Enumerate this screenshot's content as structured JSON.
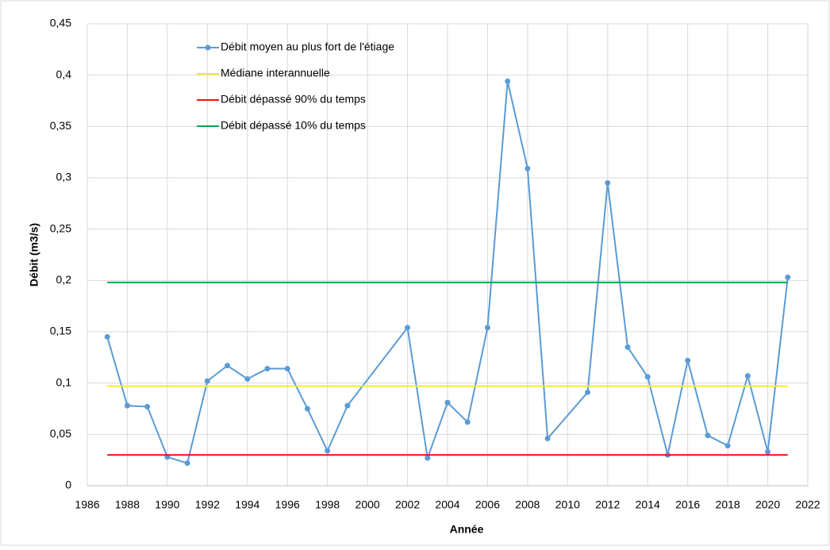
{
  "chart_data": {
    "type": "line",
    "x_label": "Année",
    "y_label": "Débit (m3/s)",
    "xlim": [
      1986,
      2022
    ],
    "xticks": [
      1986,
      1988,
      1990,
      1992,
      1994,
      1996,
      1998,
      2000,
      2002,
      2004,
      2006,
      2008,
      2010,
      2012,
      2014,
      2016,
      2018,
      2020,
      2022
    ],
    "ylim": [
      0,
      0.45
    ],
    "yticks": [
      0,
      {
        "value": 0.05,
        "label": "0,05"
      },
      {
        "value": 0.1,
        "label": "0,1"
      },
      {
        "value": 0.15,
        "label": "0,15"
      },
      {
        "value": 0.2,
        "label": "0,2"
      },
      {
        "value": 0.25,
        "label": "0,25"
      },
      {
        "value": 0.3,
        "label": "0,3"
      },
      {
        "value": 0.35,
        "label": "0,35"
      },
      {
        "value": 0.4,
        "label": "0,4"
      },
      {
        "value": 0.45,
        "label": "0,45"
      }
    ],
    "grid": true,
    "legend": "top-left",
    "series": [
      {
        "name": "Débit moyen au plus fort de l'étiage",
        "color": "#5b9bd5",
        "marker": true,
        "x": [
          1987,
          1988,
          1989,
          1990,
          1991,
          1992,
          1993,
          1994,
          1995,
          1996,
          1997,
          1998,
          1999,
          2002,
          2003,
          2004,
          2005,
          2006,
          2007,
          2008,
          2009,
          2011,
          2012,
          2013,
          2014,
          2015,
          2016,
          2017,
          2018,
          2019,
          2020,
          2021
        ],
        "values": [
          0.145,
          0.078,
          0.077,
          0.028,
          0.022,
          0.102,
          0.117,
          0.104,
          0.114,
          0.114,
          0.075,
          0.034,
          0.078,
          0.154,
          0.027,
          0.081,
          0.062,
          0.154,
          0.394,
          0.309,
          0.046,
          0.091,
          0.295,
          0.135,
          0.106,
          0.03,
          0.122,
          0.049,
          0.039,
          0.107,
          0.033,
          0.203
        ]
      },
      {
        "name": "Médiane interannuelle",
        "color": "#f0f020",
        "marker": false,
        "x": [
          1987,
          2021
        ],
        "values": [
          0.097,
          0.097
        ]
      },
      {
        "name": "Débit dépassé 90% du temps",
        "color": "#ee1111",
        "marker": false,
        "x": [
          1987,
          2021
        ],
        "values": [
          0.03,
          0.03
        ]
      },
      {
        "name": "Débit dépassé 10% du temps",
        "color": "#00a84f",
        "marker": false,
        "x": [
          1987,
          2021
        ],
        "values": [
          0.198,
          0.198
        ]
      }
    ]
  }
}
